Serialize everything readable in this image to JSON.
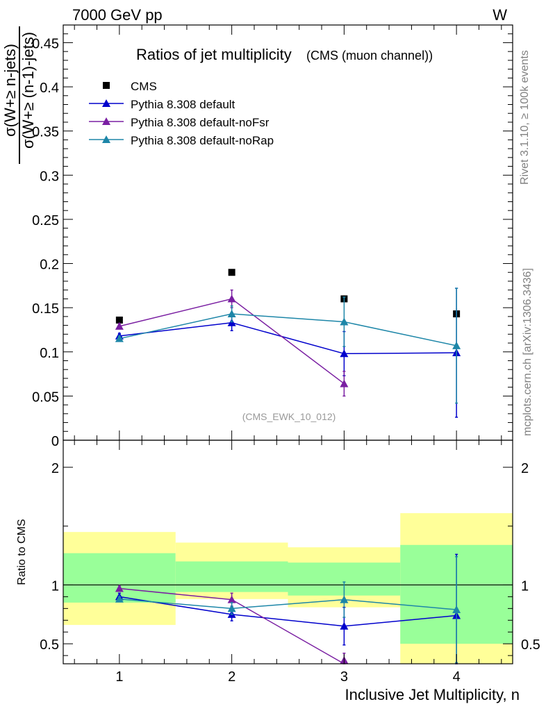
{
  "header": {
    "energy": "7000 GeV pp",
    "process": "W",
    "side_rivet": "Rivet 3.1.10, ≥ 100k events",
    "side_site": "mcplots.cern.ch [arXiv:1306.3436]",
    "analysis_tag": "(CMS_EWK_10_012)"
  },
  "chart_data": [
    {
      "type": "line",
      "title": "Ratios of jet multiplicity",
      "subtitle": "(CMS (muon channel))",
      "ylabel_numerator": "σ(W+≥ n-jets)",
      "ylabel_denominator": "σ(W+≥ (n-1)-jets)",
      "xlim": [
        0.5,
        4.5
      ],
      "ylim": [
        0,
        0.47
      ],
      "yticks": [
        0,
        0.05,
        0.1,
        0.15,
        0.2,
        0.25,
        0.3,
        0.35,
        0.4,
        0.45
      ],
      "ytick_labels": [
        "0",
        "0.05",
        "0.1",
        "0.15",
        "0.2",
        "0.25",
        "0.3",
        "0.35",
        "0.4",
        "0.45"
      ],
      "legend_position": "top-left",
      "series": [
        {
          "name": "CMS",
          "color": "#000000",
          "marker": "square",
          "x": [
            1,
            2,
            3,
            4
          ],
          "y": [
            0.136,
            0.19,
            0.16,
            0.143
          ]
        },
        {
          "name": "Pythia 8.308 default",
          "color": "#0000cc",
          "marker": "triangle",
          "x": [
            1,
            2,
            3,
            4
          ],
          "y": [
            0.118,
            0.133,
            0.098,
            0.099
          ],
          "yerr": [
            0.003,
            0.009,
            0.025,
            0.073
          ]
        },
        {
          "name": "Pythia 8.308 default-noFsr",
          "color": "#7a1fa2",
          "marker": "triangle",
          "x": [
            1,
            2,
            3
          ],
          "y": [
            0.129,
            0.16,
            0.064
          ],
          "yerr": [
            0.003,
            0.01,
            0.014
          ]
        },
        {
          "name": "Pythia 8.308 default-noRap",
          "color": "#1d86a8",
          "marker": "triangle",
          "x": [
            1,
            2,
            3,
            4
          ],
          "y": [
            0.115,
            0.143,
            0.134,
            0.107
          ],
          "yerr": [
            0.003,
            0.009,
            0.028,
            0.065
          ]
        }
      ]
    },
    {
      "type": "line",
      "ylabel": "Ratio to CMS",
      "xlabel": "Inclusive Jet Multiplicity, n",
      "xlim": [
        0.5,
        4.5
      ],
      "ylim": [
        0.33,
        2.23
      ],
      "yticks": [
        0.5,
        1,
        2
      ],
      "ytick_labels": [
        "0.5",
        "1",
        "2"
      ],
      "xticks": [
        1,
        2,
        3,
        4
      ],
      "xtick_labels": [
        "1",
        "2",
        "3",
        "4"
      ],
      "bands": [
        {
          "x": [
            0.5,
            1.5
          ],
          "yellow": [
            0.66,
            1.45
          ],
          "green": [
            0.85,
            1.27
          ]
        },
        {
          "x": [
            1.5,
            2.5
          ],
          "yellow": [
            0.88,
            1.36
          ],
          "green": [
            0.94,
            1.2
          ]
        },
        {
          "x": [
            2.5,
            3.5
          ],
          "yellow": [
            0.81,
            1.32
          ],
          "green": [
            0.91,
            1.19
          ]
        },
        {
          "x": [
            3.5,
            4.5
          ],
          "yellow": [
            0.33,
            1.61
          ],
          "green": [
            0.5,
            1.34
          ]
        }
      ],
      "series": [
        {
          "name": "Pythia 8.308 default",
          "color": "#0000cc",
          "x": [
            1,
            2,
            3,
            4
          ],
          "y": [
            0.9,
            0.75,
            0.65,
            0.74
          ],
          "yerr": [
            0.03,
            0.055,
            0.16,
            0.52
          ]
        },
        {
          "name": "Pythia 8.308 default-noFsr",
          "color": "#7a1fa2",
          "x": [
            1,
            2,
            3
          ],
          "y": [
            0.97,
            0.875,
            0.33
          ],
          "yerr": [
            0.02,
            0.055,
            0.09
          ]
        },
        {
          "name": "Pythia 8.308 default-noRap",
          "color": "#1d86a8",
          "x": [
            1,
            2,
            3,
            4
          ],
          "y": [
            0.88,
            0.8,
            0.875,
            0.79
          ],
          "yerr": [
            0.02,
            0.05,
            0.15,
            0.45
          ]
        }
      ]
    }
  ]
}
